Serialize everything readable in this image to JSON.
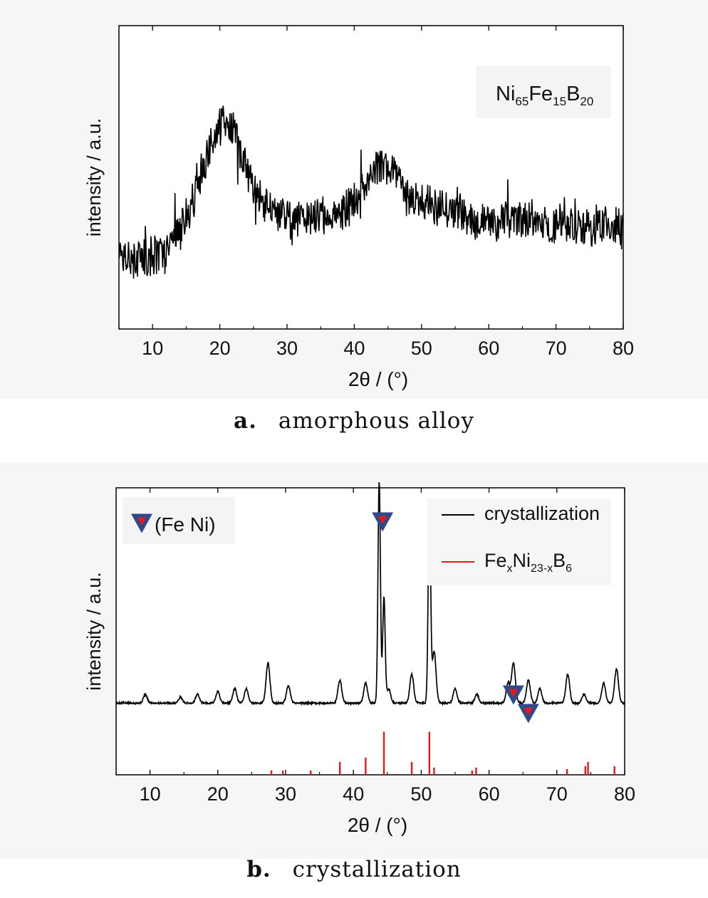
{
  "chart_data": [
    {
      "type": "line",
      "panel_label": "a.",
      "caption": "amorphous alloy",
      "xlabel": "2θ / (°)",
      "ylabel": "intensity / a.u.",
      "xlim": [
        5,
        80
      ],
      "ylim": [
        0,
        1
      ],
      "xticks": [
        10,
        20,
        30,
        40,
        50,
        60,
        70,
        80
      ],
      "yticks": [],
      "grid": false,
      "inset_label": {
        "base": [
          "Ni",
          "Fe",
          "B"
        ],
        "sub": [
          "65",
          "15",
          "20"
        ]
      },
      "series": [
        {
          "color": "#000000",
          "noise": 0.06,
          "x": [
            5,
            7,
            9,
            11,
            13,
            15,
            17,
            19,
            20.5,
            22,
            23.5,
            25,
            27,
            29,
            31,
            33,
            35,
            37,
            39,
            41,
            43,
            44.5,
            46,
            48,
            50,
            52,
            55,
            58,
            61,
            64,
            67,
            70,
            73,
            76,
            78,
            80
          ],
          "values": [
            0.27,
            0.24,
            0.23,
            0.24,
            0.28,
            0.36,
            0.5,
            0.63,
            0.68,
            0.66,
            0.57,
            0.46,
            0.4,
            0.38,
            0.36,
            0.37,
            0.37,
            0.38,
            0.4,
            0.44,
            0.52,
            0.56,
            0.52,
            0.45,
            0.41,
            0.4,
            0.38,
            0.36,
            0.35,
            0.36,
            0.36,
            0.35,
            0.34,
            0.34,
            0.34,
            0.34
          ]
        }
      ]
    },
    {
      "type": "line",
      "panel_label": "b.",
      "caption": "crystallization",
      "xlabel": "2θ / (°)",
      "ylabel": "intensity / a.u.",
      "xlim": [
        5,
        80
      ],
      "ylim": [
        0,
        1
      ],
      "xticks": [
        10,
        20,
        30,
        40,
        50,
        60,
        70,
        80
      ],
      "yticks": [],
      "grid": false,
      "legend": {
        "placement": "top-right",
        "entries": [
          {
            "label": "crystallization",
            "color": "#000000"
          },
          {
            "label_parts": {
              "base": [
                "Fe",
                "Ni",
                "B"
              ],
              "sub": [
                "x",
                "23-x",
                "6"
              ]
            },
            "color": "#e31a1c"
          }
        ]
      },
      "marker_legend": {
        "label": "(Fe Ni)",
        "outer_color": "#2e4a8c",
        "inner_color": "#e31a1c"
      },
      "marker_positions": [
        44.3,
        63.6,
        65.8
      ],
      "baseline": 0.25,
      "series": [
        {
          "name": "crystallization",
          "color": "#000000",
          "peaks": [
            {
              "x": 9.3,
              "h": 0.03
            },
            {
              "x": 14.5,
              "h": 0.02
            },
            {
              "x": 17.0,
              "h": 0.03
            },
            {
              "x": 20.0,
              "h": 0.04
            },
            {
              "x": 22.5,
              "h": 0.05
            },
            {
              "x": 24.2,
              "h": 0.05
            },
            {
              "x": 27.4,
              "h": 0.14
            },
            {
              "x": 30.4,
              "h": 0.06
            },
            {
              "x": 38.0,
              "h": 0.08
            },
            {
              "x": 41.8,
              "h": 0.07
            },
            {
              "x": 43.8,
              "h": 0.77
            },
            {
              "x": 44.5,
              "h": 0.37
            },
            {
              "x": 45.2,
              "h": 0.05
            },
            {
              "x": 48.6,
              "h": 0.1
            },
            {
              "x": 51.2,
              "h": 0.7
            },
            {
              "x": 51.9,
              "h": 0.18
            },
            {
              "x": 55.0,
              "h": 0.05
            },
            {
              "x": 58.2,
              "h": 0.03
            },
            {
              "x": 62.8,
              "h": 0.07
            },
            {
              "x": 63.6,
              "h": 0.14
            },
            {
              "x": 65.8,
              "h": 0.08
            },
            {
              "x": 67.5,
              "h": 0.05
            },
            {
              "x": 71.6,
              "h": 0.1
            },
            {
              "x": 74.0,
              "h": 0.03
            },
            {
              "x": 76.9,
              "h": 0.07
            },
            {
              "x": 78.8,
              "h": 0.12
            }
          ]
        },
        {
          "label_parts": {
            "base": [
              "Fe",
              "Ni",
              "B"
            ],
            "sub": [
              "x",
              "23-x",
              "6"
            ]
          },
          "color": "#e31a1c",
          "type": "stick",
          "sticks": [
            {
              "x": 27.9,
              "h": 0.015
            },
            {
              "x": 29.6,
              "h": 0.015
            },
            {
              "x": 33.7,
              "h": 0.015
            },
            {
              "x": 38.0,
              "h": 0.045
            },
            {
              "x": 41.8,
              "h": 0.06
            },
            {
              "x": 44.5,
              "h": 0.15
            },
            {
              "x": 48.6,
              "h": 0.045
            },
            {
              "x": 51.2,
              "h": 0.15
            },
            {
              "x": 51.9,
              "h": 0.025
            },
            {
              "x": 57.5,
              "h": 0.015
            },
            {
              "x": 58.1,
              "h": 0.025
            },
            {
              "x": 71.5,
              "h": 0.02
            },
            {
              "x": 74.2,
              "h": 0.03
            },
            {
              "x": 74.6,
              "h": 0.045
            },
            {
              "x": 78.5,
              "h": 0.03
            }
          ]
        }
      ]
    }
  ]
}
